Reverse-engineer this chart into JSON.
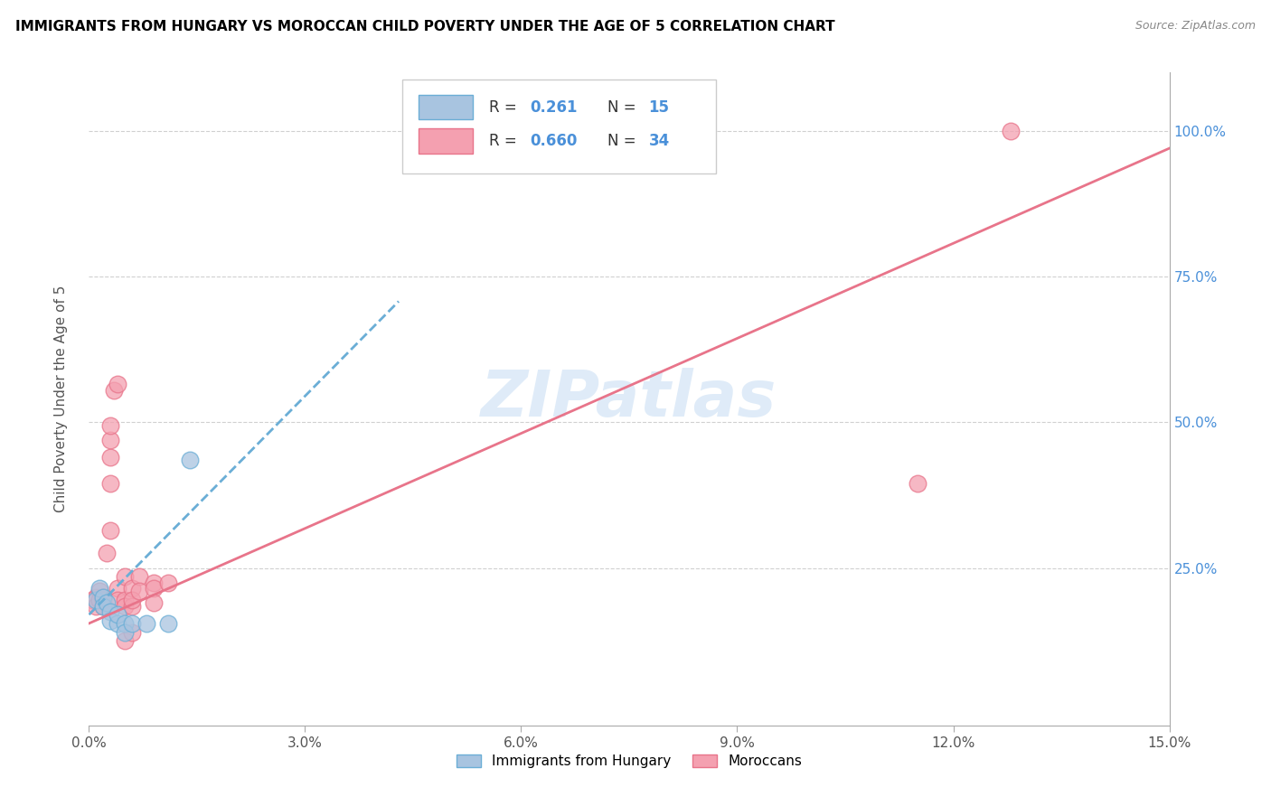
{
  "title": "IMMIGRANTS FROM HUNGARY VS MOROCCAN CHILD POVERTY UNDER THE AGE OF 5 CORRELATION CHART",
  "source": "Source: ZipAtlas.com",
  "ylabel": "Child Poverty Under the Age of 5",
  "xlim": [
    0.0,
    0.15
  ],
  "ylim": [
    -0.02,
    1.1
  ],
  "xticks": [
    0.0,
    0.03,
    0.06,
    0.09,
    0.12,
    0.15
  ],
  "xtick_labels": [
    "0.0%",
    "3.0%",
    "6.0%",
    "9.0%",
    "12.0%",
    "15.0%"
  ],
  "yticks": [
    0.25,
    0.5,
    0.75,
    1.0
  ],
  "ytick_labels": [
    "25.0%",
    "50.0%",
    "75.0%",
    "100.0%"
  ],
  "hungary_color": "#a8c4e0",
  "moroccan_color": "#f4a0b0",
  "trendline_hungary_color": "#6baed6",
  "trendline_moroccan_color": "#e8748a",
  "grid_color": "#d0d0d0",
  "hungary_scatter": [
    [
      0.001,
      0.195
    ],
    [
      0.0015,
      0.215
    ],
    [
      0.002,
      0.2
    ],
    [
      0.002,
      0.185
    ],
    [
      0.0025,
      0.19
    ],
    [
      0.003,
      0.175
    ],
    [
      0.003,
      0.16
    ],
    [
      0.004,
      0.155
    ],
    [
      0.004,
      0.17
    ],
    [
      0.005,
      0.155
    ],
    [
      0.005,
      0.14
    ],
    [
      0.006,
      0.155
    ],
    [
      0.008,
      0.155
    ],
    [
      0.011,
      0.155
    ],
    [
      0.014,
      0.435
    ]
  ],
  "moroccan_scatter": [
    [
      0.0005,
      0.195
    ],
    [
      0.001,
      0.2
    ],
    [
      0.001,
      0.185
    ],
    [
      0.0015,
      0.21
    ],
    [
      0.0015,
      0.195
    ],
    [
      0.002,
      0.2
    ],
    [
      0.002,
      0.185
    ],
    [
      0.002,
      0.195
    ],
    [
      0.0025,
      0.275
    ],
    [
      0.003,
      0.315
    ],
    [
      0.003,
      0.395
    ],
    [
      0.003,
      0.44
    ],
    [
      0.003,
      0.47
    ],
    [
      0.003,
      0.495
    ],
    [
      0.0035,
      0.555
    ],
    [
      0.004,
      0.565
    ],
    [
      0.004,
      0.215
    ],
    [
      0.004,
      0.195
    ],
    [
      0.005,
      0.235
    ],
    [
      0.005,
      0.195
    ],
    [
      0.005,
      0.185
    ],
    [
      0.005,
      0.125
    ],
    [
      0.006,
      0.185
    ],
    [
      0.006,
      0.14
    ],
    [
      0.006,
      0.215
    ],
    [
      0.006,
      0.195
    ],
    [
      0.007,
      0.235
    ],
    [
      0.007,
      0.21
    ],
    [
      0.009,
      0.225
    ],
    [
      0.009,
      0.215
    ],
    [
      0.009,
      0.19
    ],
    [
      0.011,
      0.225
    ],
    [
      0.115,
      0.395
    ],
    [
      0.128,
      1.0
    ]
  ],
  "watermark": "ZIPatlas",
  "hungary_trend_x": [
    0.0,
    0.045
  ],
  "hungarian_trend_slope": 12.5,
  "hungarian_trend_intercept": 0.17,
  "moroccan_trend_x0": 0.0,
  "moroccan_trend_x1": 0.15,
  "moroccan_trend_y0": 0.155,
  "moroccan_trend_y1": 0.97
}
